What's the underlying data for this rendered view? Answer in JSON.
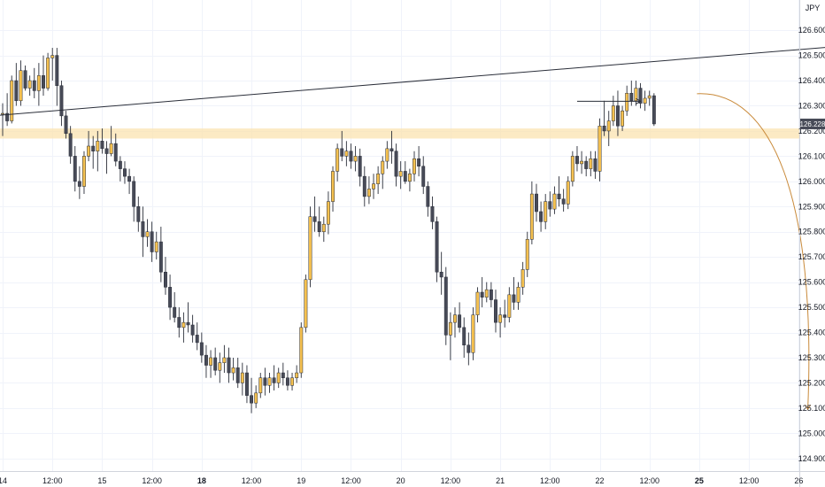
{
  "chart_data": {
    "type": "candlestick",
    "currency_label": "JPY",
    "last_price_label": "126.228",
    "y_range": [
      124.85,
      126.72
    ],
    "y_ticks": [
      "126.600",
      "126.500",
      "126.400",
      "126.300",
      "126.200",
      "126.100",
      "126.000",
      "125.900",
      "125.800",
      "125.700",
      "125.600",
      "125.500",
      "125.400",
      "125.300",
      "125.200",
      "125.100",
      "125.000",
      "124.900"
    ],
    "x_ticks": [
      {
        "label": "14",
        "bar": 0,
        "bold": false
      },
      {
        "label": "12:00",
        "bar": 11,
        "bold": false
      },
      {
        "label": "15",
        "bar": 22,
        "bold": false
      },
      {
        "label": "12:00",
        "bar": 33,
        "bold": false
      },
      {
        "label": "18",
        "bar": 44,
        "bold": true
      },
      {
        "label": "12:00",
        "bar": 55,
        "bold": false
      },
      {
        "label": "19",
        "bar": 66,
        "bold": false
      },
      {
        "label": "12:00",
        "bar": 77,
        "bold": false
      },
      {
        "label": "20",
        "bar": 88,
        "bold": false
      },
      {
        "label": "12:00",
        "bar": 99,
        "bold": false
      },
      {
        "label": "21",
        "bar": 110,
        "bold": false
      },
      {
        "label": "12:00",
        "bar": 121,
        "bold": false
      },
      {
        "label": "22",
        "bar": 132,
        "bold": false
      },
      {
        "label": "12:00",
        "bar": 143,
        "bold": false
      },
      {
        "label": "25",
        "bar": 154,
        "bold": true
      },
      {
        "label": "12:00",
        "bar": 165,
        "bold": false
      },
      {
        "label": "26",
        "bar": 176,
        "bold": false
      }
    ],
    "colors": {
      "bull": "#f5c150",
      "bear": "#474a57",
      "wick": "#2a2e39",
      "zone": "#fbe3b0",
      "trendline": "#2a2e39",
      "arrow": "#2a2e39",
      "projection": "#c98a3a",
      "price_label_bg": "#474a57"
    },
    "resistance_zone": {
      "low": 126.17,
      "high": 126.21
    },
    "trendline": {
      "start": {
        "bar": -1,
        "price": 126.262
      },
      "end": {
        "bar": 182,
        "price": 126.532
      }
    },
    "arrow": {
      "from": {
        "bar": 127,
        "price": 126.318
      },
      "to": {
        "bar": 141,
        "price": 126.318
      }
    },
    "projection": {
      "start": {
        "bar": 153.5,
        "price": 126.348
      },
      "end": {
        "bar": 178,
        "price": 125.095
      }
    },
    "candles": [
      [
        126.27,
        126.31,
        126.18,
        126.27
      ],
      [
        126.27,
        126.35,
        126.22,
        126.24
      ],
      [
        126.24,
        126.42,
        126.23,
        126.4
      ],
      [
        126.4,
        126.47,
        126.3,
        126.32
      ],
      [
        126.32,
        126.48,
        126.3,
        126.44
      ],
      [
        126.44,
        126.46,
        126.36,
        126.37
      ],
      [
        126.37,
        126.42,
        126.34,
        126.4
      ],
      [
        126.4,
        126.45,
        126.33,
        126.36
      ],
      [
        126.36,
        126.47,
        126.3,
        126.42
      ],
      [
        126.42,
        126.5,
        126.34,
        126.37
      ],
      [
        126.37,
        126.51,
        126.36,
        126.49
      ],
      [
        126.49,
        126.53,
        126.4,
        126.5
      ],
      [
        126.5,
        126.53,
        126.3,
        126.38
      ],
      [
        126.38,
        126.4,
        126.22,
        126.26
      ],
      [
        126.26,
        126.28,
        126.17,
        126.19
      ],
      [
        126.19,
        126.22,
        126.07,
        126.1
      ],
      [
        126.1,
        126.14,
        125.96,
        126.0
      ],
      [
        126.0,
        126.06,
        125.93,
        125.98
      ],
      [
        125.98,
        126.12,
        125.95,
        126.1
      ],
      [
        126.1,
        126.2,
        126.08,
        126.14
      ],
      [
        126.14,
        126.18,
        126.05,
        126.12
      ],
      [
        126.12,
        126.2,
        126.04,
        126.16
      ],
      [
        126.16,
        126.21,
        126.11,
        126.13
      ],
      [
        126.13,
        126.16,
        126.03,
        126.11
      ],
      [
        126.11,
        126.22,
        126.1,
        126.15
      ],
      [
        126.15,
        126.19,
        126.06,
        126.08
      ],
      [
        126.08,
        126.1,
        126.0,
        126.05
      ],
      [
        126.05,
        126.08,
        125.99,
        126.02
      ],
      [
        126.02,
        126.05,
        125.95,
        126.0
      ],
      [
        126.0,
        126.02,
        125.84,
        125.9
      ],
      [
        125.9,
        125.94,
        125.8,
        125.84
      ],
      [
        125.84,
        125.9,
        125.7,
        125.78
      ],
      [
        125.78,
        125.85,
        125.74,
        125.8
      ],
      [
        125.8,
        125.84,
        125.68,
        125.72
      ],
      [
        125.72,
        125.8,
        125.69,
        125.76
      ],
      [
        125.76,
        125.82,
        125.6,
        125.64
      ],
      [
        125.64,
        125.7,
        125.55,
        125.58
      ],
      [
        125.58,
        125.63,
        125.45,
        125.5
      ],
      [
        125.5,
        125.56,
        125.44,
        125.46
      ],
      [
        125.46,
        125.5,
        125.38,
        125.42
      ],
      [
        125.42,
        125.48,
        125.36,
        125.44
      ],
      [
        125.44,
        125.52,
        125.4,
        125.43
      ],
      [
        125.43,
        125.47,
        125.36,
        125.39
      ],
      [
        125.39,
        125.44,
        125.33,
        125.36
      ],
      [
        125.36,
        125.4,
        125.28,
        125.31
      ],
      [
        125.31,
        125.35,
        125.22,
        125.27
      ],
      [
        125.27,
        125.33,
        125.22,
        125.3
      ],
      [
        125.3,
        125.34,
        125.23,
        125.25
      ],
      [
        125.25,
        125.32,
        125.2,
        125.28
      ],
      [
        125.28,
        125.35,
        125.24,
        125.3
      ],
      [
        125.3,
        125.34,
        125.2,
        125.24
      ],
      [
        125.24,
        125.3,
        125.21,
        125.26
      ],
      [
        125.26,
        125.3,
        125.18,
        125.2
      ],
      [
        125.2,
        125.28,
        125.15,
        125.24
      ],
      [
        125.24,
        125.27,
        125.12,
        125.15
      ],
      [
        125.15,
        125.22,
        125.08,
        125.12
      ],
      [
        125.12,
        125.19,
        125.1,
        125.16
      ],
      [
        125.16,
        125.24,
        125.14,
        125.22
      ],
      [
        125.22,
        125.26,
        125.15,
        125.19
      ],
      [
        125.19,
        125.24,
        125.16,
        125.22
      ],
      [
        125.22,
        125.27,
        125.17,
        125.2
      ],
      [
        125.2,
        125.26,
        125.18,
        125.24
      ],
      [
        125.24,
        125.28,
        125.19,
        125.22
      ],
      [
        125.22,
        125.25,
        125.17,
        125.19
      ],
      [
        125.19,
        125.24,
        125.17,
        125.22
      ],
      [
        125.22,
        125.27,
        125.2,
        125.24
      ],
      [
        125.24,
        125.44,
        125.22,
        125.42
      ],
      [
        125.42,
        125.63,
        125.4,
        125.61
      ],
      [
        125.61,
        125.9,
        125.58,
        125.86
      ],
      [
        125.86,
        125.94,
        125.8,
        125.84
      ],
      [
        125.84,
        125.9,
        125.78,
        125.8
      ],
      [
        125.8,
        125.86,
        125.76,
        125.83
      ],
      [
        125.83,
        125.96,
        125.79,
        125.92
      ],
      [
        125.92,
        126.06,
        125.88,
        126.04
      ],
      [
        126.04,
        126.15,
        126.0,
        126.13
      ],
      [
        126.13,
        126.2,
        126.08,
        126.1
      ],
      [
        126.1,
        126.16,
        126.06,
        126.12
      ],
      [
        126.12,
        126.15,
        126.05,
        126.08
      ],
      [
        126.08,
        126.14,
        126.04,
        126.1
      ],
      [
        126.1,
        126.13,
        125.98,
        126.02
      ],
      [
        126.02,
        126.06,
        125.9,
        125.94
      ],
      [
        125.94,
        126.02,
        125.91,
        125.97
      ],
      [
        125.97,
        126.03,
        125.93,
        125.99
      ],
      [
        125.99,
        126.06,
        125.95,
        126.03
      ],
      [
        126.03,
        126.1,
        125.97,
        126.08
      ],
      [
        126.08,
        126.16,
        126.05,
        126.13
      ],
      [
        126.13,
        126.2,
        126.07,
        126.12
      ],
      [
        126.12,
        126.15,
        125.98,
        126.02
      ],
      [
        126.02,
        126.08,
        125.97,
        126.04
      ],
      [
        126.04,
        126.08,
        125.99,
        126.0
      ],
      [
        126.0,
        126.05,
        125.96,
        126.03
      ],
      [
        126.03,
        126.12,
        126.0,
        126.09
      ],
      [
        126.09,
        126.14,
        126.02,
        126.06
      ],
      [
        126.06,
        126.1,
        125.95,
        125.98
      ],
      [
        125.98,
        126.0,
        125.86,
        125.9
      ],
      [
        125.9,
        125.94,
        125.81,
        125.84
      ],
      [
        125.84,
        125.86,
        125.6,
        125.64
      ],
      [
        125.64,
        125.72,
        125.55,
        125.62
      ],
      [
        125.62,
        125.66,
        125.35,
        125.39
      ],
      [
        125.39,
        125.48,
        125.29,
        125.44
      ],
      [
        125.44,
        125.5,
        125.38,
        125.47
      ],
      [
        125.47,
        125.52,
        125.4,
        125.42
      ],
      [
        125.42,
        125.46,
        125.3,
        125.35
      ],
      [
        125.35,
        125.4,
        125.27,
        125.32
      ],
      [
        125.32,
        125.5,
        125.29,
        125.47
      ],
      [
        125.47,
        125.58,
        125.44,
        125.56
      ],
      [
        125.56,
        125.62,
        125.5,
        125.54
      ],
      [
        125.54,
        125.6,
        125.52,
        125.57
      ],
      [
        125.57,
        125.6,
        125.5,
        125.53
      ],
      [
        125.53,
        125.57,
        125.4,
        125.44
      ],
      [
        125.44,
        125.5,
        125.38,
        125.47
      ],
      [
        125.47,
        125.53,
        125.42,
        125.46
      ],
      [
        125.46,
        125.58,
        125.44,
        125.55
      ],
      [
        125.55,
        125.62,
        125.49,
        125.52
      ],
      [
        125.52,
        125.6,
        125.49,
        125.58
      ],
      [
        125.58,
        125.68,
        125.55,
        125.65
      ],
      [
        125.65,
        125.8,
        125.62,
        125.77
      ],
      [
        125.77,
        126.0,
        125.75,
        125.95
      ],
      [
        125.95,
        125.99,
        125.84,
        125.88
      ],
      [
        125.88,
        125.92,
        125.8,
        125.84
      ],
      [
        125.84,
        125.95,
        125.81,
        125.92
      ],
      [
        125.92,
        125.96,
        125.86,
        125.89
      ],
      [
        125.89,
        125.98,
        125.87,
        125.95
      ],
      [
        125.95,
        126.02,
        125.9,
        125.93
      ],
      [
        125.93,
        125.97,
        125.88,
        125.91
      ],
      [
        125.91,
        126.02,
        125.89,
        126.0
      ],
      [
        126.0,
        126.12,
        125.98,
        126.1
      ],
      [
        126.1,
        126.14,
        126.04,
        126.07
      ],
      [
        126.07,
        126.12,
        126.03,
        126.08
      ],
      [
        126.08,
        126.1,
        126.02,
        126.05
      ],
      [
        126.05,
        126.12,
        126.02,
        126.09
      ],
      [
        126.09,
        126.12,
        126.01,
        126.04
      ],
      [
        126.04,
        126.25,
        126.0,
        126.22
      ],
      [
        126.22,
        126.32,
        126.18,
        126.2
      ],
      [
        126.2,
        126.28,
        126.14,
        126.24
      ],
      [
        126.24,
        126.34,
        126.22,
        126.3
      ],
      [
        126.3,
        126.36,
        126.18,
        126.22
      ],
      [
        126.22,
        126.3,
        126.2,
        126.28
      ],
      [
        126.28,
        126.38,
        126.26,
        126.35
      ],
      [
        126.35,
        126.4,
        126.3,
        126.32
      ],
      [
        126.32,
        126.4,
        126.3,
        126.37
      ],
      [
        126.37,
        126.39,
        126.29,
        126.31
      ],
      [
        126.31,
        126.36,
        126.28,
        126.33
      ],
      [
        126.33,
        126.36,
        126.3,
        126.34
      ],
      [
        126.34,
        126.35,
        126.22,
        126.228
      ]
    ]
  }
}
